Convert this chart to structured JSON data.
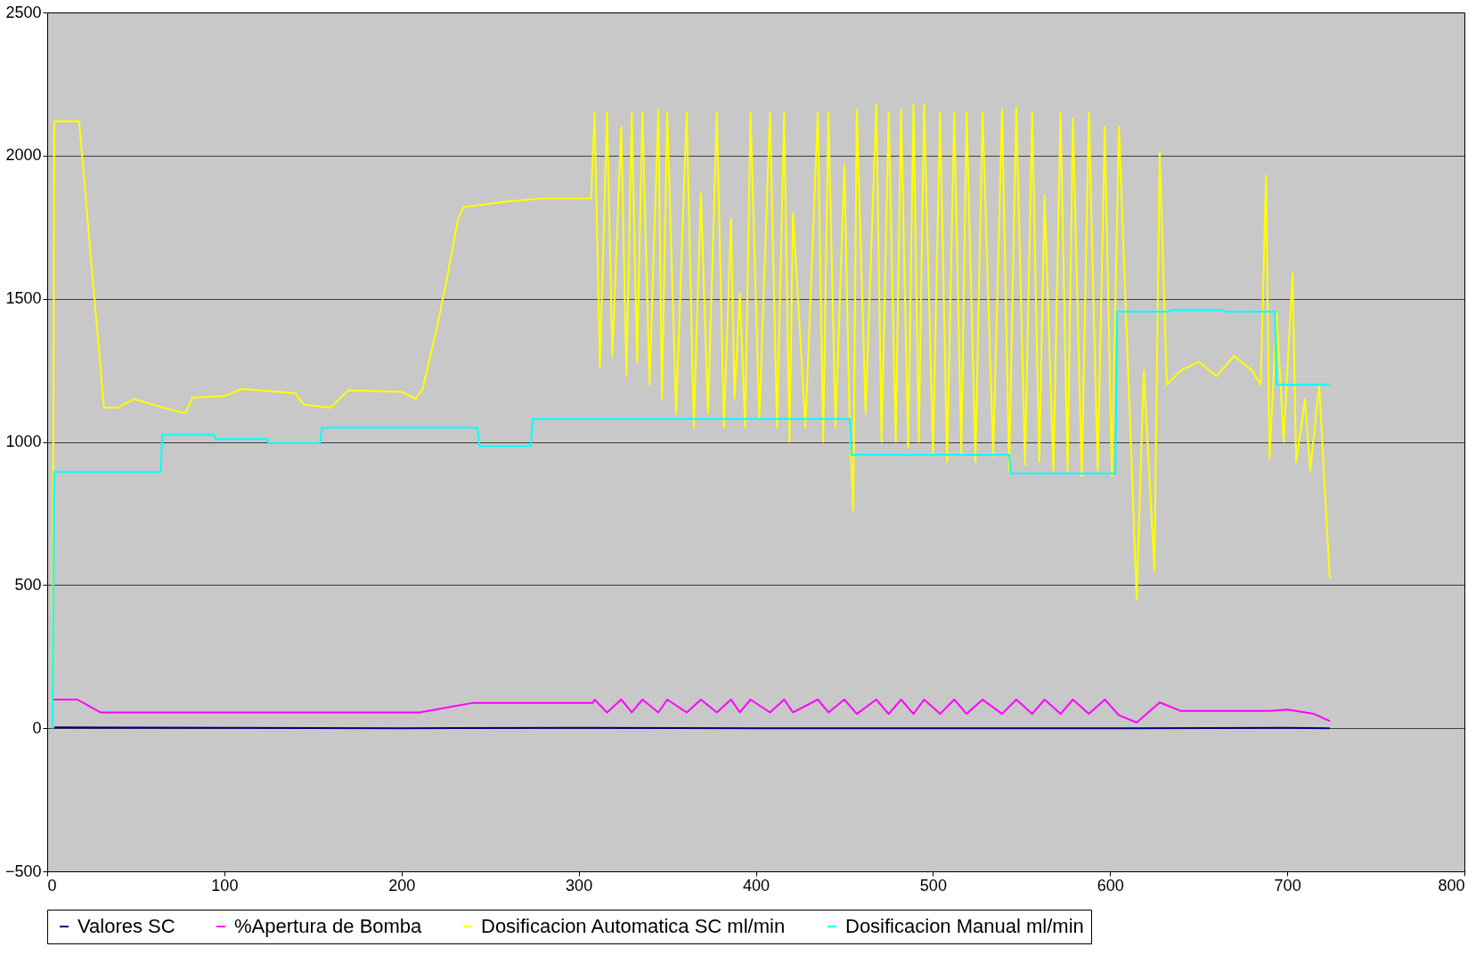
{
  "chart_data": {
    "type": "line",
    "xlim": [
      0,
      800
    ],
    "xticks": [
      0,
      100,
      200,
      300,
      400,
      500,
      600,
      700,
      800
    ],
    "ylim": [
      -500,
      2500
    ],
    "yticks": [
      -500,
      0,
      500,
      1000,
      1500,
      2000,
      2500
    ],
    "grid": "y",
    "legend": "bottom",
    "marker": "none",
    "line_style": "solid",
    "series": [
      {
        "name": "Valores SC",
        "color": "#000080",
        "x": [
          4,
          100,
          200,
          300,
          400,
          500,
          600,
          700,
          724
        ],
        "values": [
          3,
          1,
          0,
          1,
          0,
          0,
          0,
          1,
          0
        ]
      },
      {
        "name": "%Apertura de Bomba",
        "color": "#ff00ff",
        "x": [
          3,
          17,
          30,
          80,
          150,
          210,
          240,
          308,
          309,
          316,
          324,
          330,
          336,
          345,
          350,
          361,
          369,
          378,
          386,
          391,
          397,
          408,
          416,
          421,
          435,
          441,
          450,
          457,
          468,
          475,
          482,
          489,
          495,
          504,
          512,
          519,
          528,
          539,
          547,
          556,
          563,
          572,
          579,
          588,
          597,
          605,
          615,
          628,
          640,
          690,
          700,
          715,
          724
        ],
        "values": [
          100,
          100,
          55,
          55,
          55,
          55,
          88,
          88,
          100,
          55,
          100,
          55,
          100,
          55,
          100,
          55,
          100,
          55,
          100,
          55,
          100,
          55,
          100,
          55,
          100,
          55,
          100,
          50,
          100,
          50,
          100,
          50,
          100,
          50,
          100,
          50,
          100,
          50,
          100,
          50,
          100,
          50,
          100,
          50,
          100,
          45,
          20,
          90,
          60,
          60,
          65,
          50,
          25
        ]
      },
      {
        "name": "Dosificacion Automatica SC ml/min",
        "color": "#ffff00",
        "x": [
          3,
          4,
          18,
          32,
          40,
          49,
          65,
          78,
          82,
          100,
          110,
          140,
          145,
          160,
          170,
          200,
          208,
          212,
          220,
          225,
          232,
          235,
          260,
          280,
          307,
          309,
          312,
          316,
          319,
          324,
          327,
          330,
          333,
          336,
          340,
          345,
          347,
          350,
          355,
          361,
          365,
          369,
          373,
          378,
          382,
          386,
          388,
          391,
          394,
          397,
          402,
          408,
          412,
          416,
          419,
          421,
          428,
          435,
          438,
          441,
          445,
          450,
          453,
          455,
          457,
          462,
          468,
          471,
          475,
          479,
          482,
          486,
          489,
          492,
          495,
          500,
          504,
          508,
          512,
          516,
          519,
          524,
          528,
          534,
          539,
          543,
          547,
          552,
          556,
          560,
          563,
          568,
          572,
          576,
          579,
          584,
          588,
          593,
          597,
          601,
          605,
          615,
          619,
          625,
          628,
          632,
          640,
          650,
          660,
          670,
          680,
          685,
          688,
          690,
          694,
          698,
          703,
          705,
          710,
          713,
          718,
          724
        ],
        "values": [
          0,
          2120,
          2120,
          1120,
          1120,
          1150,
          1120,
          1100,
          1155,
          1160,
          1185,
          1170,
          1130,
          1120,
          1180,
          1175,
          1150,
          1185,
          1400,
          1550,
          1780,
          1820,
          1840,
          1850,
          1850,
          2150,
          1260,
          2150,
          1300,
          2100,
          1230,
          2150,
          1280,
          2150,
          1200,
          2160,
          1150,
          2150,
          1100,
          2150,
          1050,
          1870,
          1100,
          2150,
          1050,
          1780,
          1150,
          1520,
          1050,
          2150,
          1080,
          2150,
          1050,
          2150,
          1000,
          1800,
          1050,
          2150,
          1000,
          2150,
          1050,
          1970,
          1050,
          760,
          2160,
          1100,
          2180,
          1000,
          2150,
          1000,
          2160,
          980,
          2180,
          1000,
          2180,
          960,
          2150,
          930,
          2150,
          960,
          2150,
          930,
          2150,
          950,
          2160,
          900,
          2170,
          920,
          2150,
          930,
          1860,
          900,
          2150,
          900,
          2130,
          880,
          2150,
          900,
          2100,
          880,
          2100,
          450,
          1250,
          550,
          2010,
          1200,
          1250,
          1280,
          1230,
          1300,
          1250,
          1200,
          1930,
          940,
          1450,
          1000,
          1590,
          930,
          1150,
          900,
          1200,
          520
        ]
      },
      {
        "name": "Dosificacion Manual ml/min",
        "color": "#00ffff",
        "x": [
          3,
          4,
          64,
          65,
          94,
          95,
          124,
          125,
          154,
          155,
          243,
          244,
          273,
          274,
          453,
          454,
          543,
          544,
          603,
          604,
          633,
          634,
          664,
          665,
          693,
          694,
          724
        ],
        "values": [
          0,
          895,
          895,
          1025,
          1025,
          1010,
          1010,
          995,
          995,
          1050,
          1050,
          985,
          985,
          1080,
          1080,
          955,
          955,
          890,
          890,
          1455,
          1455,
          1460,
          1460,
          1455,
          1455,
          1200,
          1200
        ]
      }
    ]
  }
}
